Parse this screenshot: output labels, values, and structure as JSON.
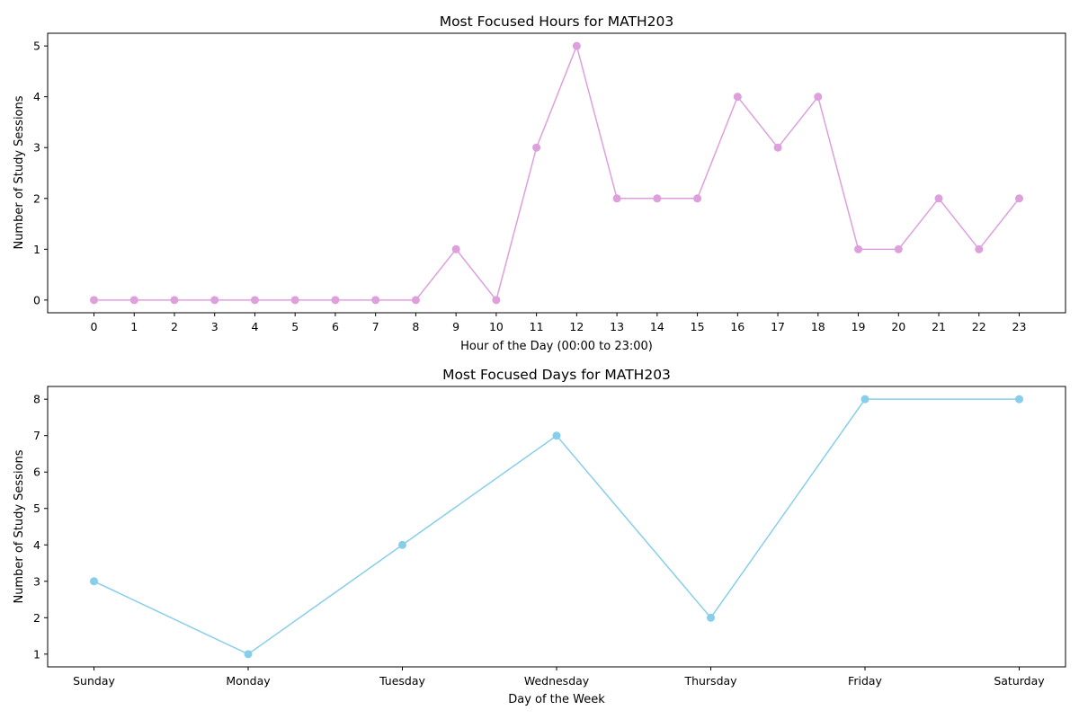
{
  "chart_data": [
    {
      "type": "line",
      "title": "Most Focused Hours for MATH203",
      "xlabel": "Hour of the Day (00:00 to 23:00)",
      "ylabel": "Number of Study Sessions",
      "categories": [
        "0",
        "1",
        "2",
        "3",
        "4",
        "5",
        "6",
        "7",
        "8",
        "9",
        "10",
        "11",
        "12",
        "13",
        "14",
        "15",
        "16",
        "17",
        "18",
        "19",
        "20",
        "21",
        "22",
        "23"
      ],
      "values": [
        0,
        0,
        0,
        0,
        0,
        0,
        0,
        0,
        0,
        1,
        0,
        3,
        5,
        2,
        2,
        2,
        4,
        3,
        4,
        1,
        1,
        2,
        1,
        2
      ],
      "yticks": [
        0,
        1,
        2,
        3,
        4,
        5
      ],
      "ylim": [
        -0.25,
        5.25
      ],
      "color": "#dda0dd",
      "marker": "circle",
      "grid": false
    },
    {
      "type": "line",
      "title": "Most Focused Days for MATH203",
      "xlabel": "Day of the Week",
      "ylabel": "Number of Study Sessions",
      "categories": [
        "Sunday",
        "Monday",
        "Tuesday",
        "Wednesday",
        "Thursday",
        "Friday",
        "Saturday"
      ],
      "values": [
        3,
        1,
        4,
        7,
        2,
        8,
        8
      ],
      "yticks": [
        1,
        2,
        3,
        4,
        5,
        6,
        7,
        8
      ],
      "ylim": [
        0.65,
        8.35
      ],
      "color": "#87ceeb",
      "marker": "circle",
      "grid": false
    }
  ]
}
